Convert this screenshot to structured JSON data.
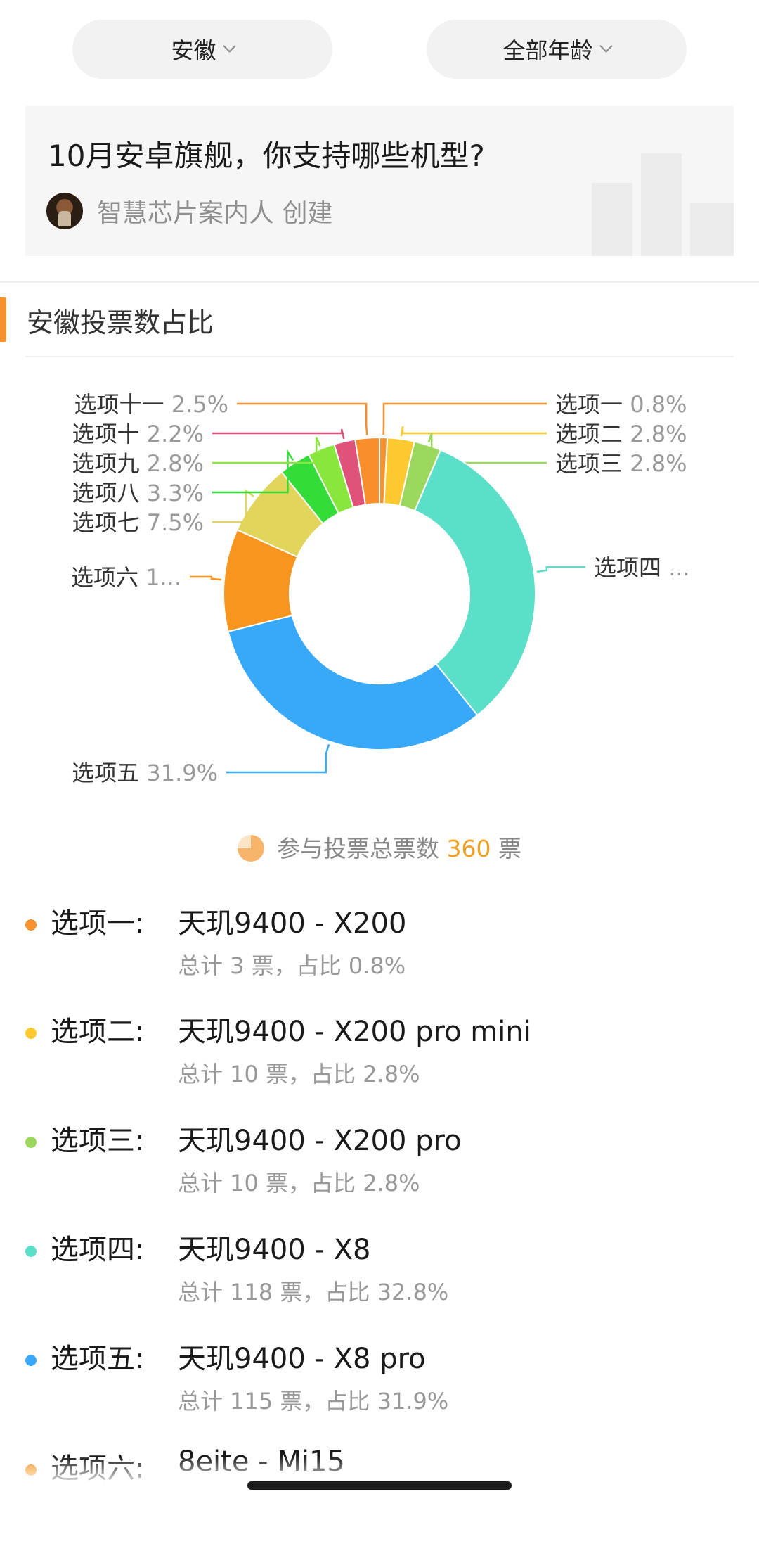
{
  "filters": {
    "region": "安徽",
    "age": "全部年龄"
  },
  "poll": {
    "title": "10月安卓旗舰，你支持哪些机型?",
    "creator": "智慧芯片案内人 创建"
  },
  "section": {
    "title": "安徽投票数占比"
  },
  "total": {
    "prefix": "参与投票总票数",
    "count": "360",
    "suffix": "票"
  },
  "chart_data": {
    "type": "pie",
    "donut": true,
    "slices": [
      {
        "label": "选项一",
        "value": 0.8,
        "pct": "0.8%",
        "color": "#f7922e",
        "display_label": "选项一 0.8%"
      },
      {
        "label": "选项二",
        "value": 2.8,
        "pct": "2.8%",
        "color": "#fdc930",
        "display_label": "选项二 2.8%"
      },
      {
        "label": "选项三",
        "value": 2.8,
        "pct": "2.8%",
        "color": "#9dd85e",
        "display_label": "选项三 2.8%"
      },
      {
        "label": "选项四",
        "value": 32.8,
        "pct": "32.8%",
        "color": "#5cdfc9",
        "display_label": "选项四 ..."
      },
      {
        "label": "选项五",
        "value": 31.9,
        "pct": "31.9%",
        "color": "#38a9f8",
        "display_label": "选项五 31.9%"
      },
      {
        "label": "选项六",
        "value": 10.6,
        "pct": "",
        "color": "#f7951e",
        "display_label": "选项六 1..."
      },
      {
        "label": "选项七",
        "value": 7.5,
        "pct": "7.5%",
        "color": "#e1d55b",
        "display_label": "选项七 7.5%"
      },
      {
        "label": "选项八",
        "value": 3.3,
        "pct": "3.3%",
        "color": "#34dc39",
        "display_label": "选项八 3.3%"
      },
      {
        "label": "选项九",
        "value": 2.8,
        "pct": "2.8%",
        "color": "#89e63c",
        "display_label": "选项九 2.8%"
      },
      {
        "label": "选项十",
        "value": 2.2,
        "pct": "2.2%",
        "color": "#e0527a",
        "display_label": "选项十 2.2%"
      },
      {
        "label": "选项十一",
        "value": 2.5,
        "pct": "2.5%",
        "color": "#f88f2c",
        "display_label": "选项十一 2.5%"
      }
    ]
  },
  "options": [
    {
      "label": "选项一:",
      "text": "天玑9400 - X200",
      "stat": "总计 3 票，占比 0.8%",
      "color": "#f7922e"
    },
    {
      "label": "选项二:",
      "text": "天玑9400 - X200 pro mini",
      "stat": "总计 10 票，占比 2.8%",
      "color": "#fdc930"
    },
    {
      "label": "选项三:",
      "text": "天玑9400 - X200 pro",
      "stat": "总计 10 票，占比 2.8%",
      "color": "#9dd85e"
    },
    {
      "label": "选项四:",
      "text": "天玑9400 - X8",
      "stat": "总计 118 票，占比 32.8%",
      "color": "#5cdfc9"
    },
    {
      "label": "选项五:",
      "text": "天玑9400 - X8 pro",
      "stat": "总计 115 票，占比 31.9%",
      "color": "#38a9f8"
    },
    {
      "label": "选项六:",
      "text": "8eite - Mi15",
      "stat": "",
      "color": "#f7951e"
    }
  ]
}
